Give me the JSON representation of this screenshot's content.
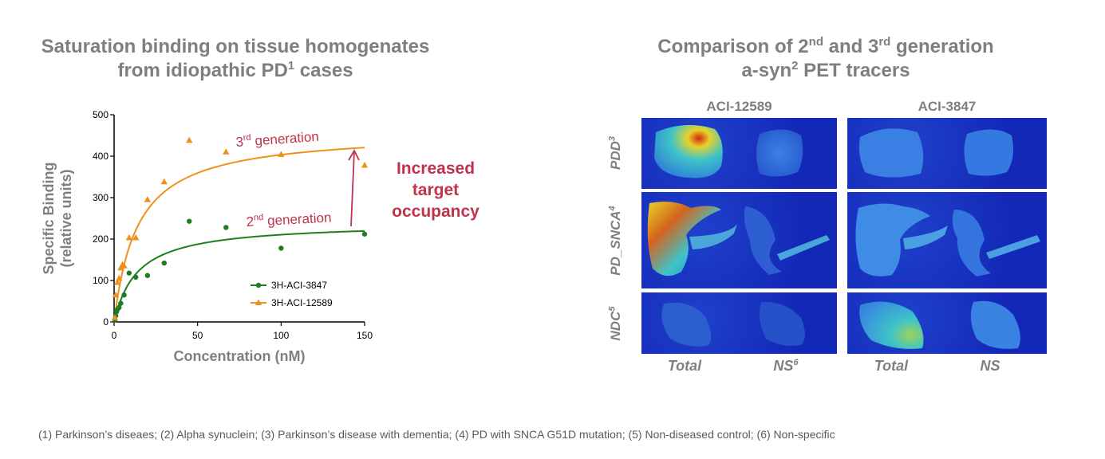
{
  "left_title": {
    "line1": "Saturation binding on tissue homogenates",
    "line2_before": "from idiopathic PD",
    "line2_sup": "1",
    "line2_after": " cases"
  },
  "right_title": {
    "line1_a": "Comparison of 2",
    "line1_sup1": "nd",
    "line1_b": " and 3",
    "line1_sup2": "rd",
    "line1_c": " generation",
    "line2_a": "a-syn",
    "line2_sup": "2",
    "line2_b": " PET tracers"
  },
  "chart_data": {
    "type": "scatter",
    "xlabel": "Concentration (nM)",
    "ylabel_line1": "Specific Binding",
    "ylabel_line2": "(relative units)",
    "xlim": [
      0,
      150
    ],
    "ylim": [
      0,
      500
    ],
    "xticks": [
      0,
      50,
      100,
      150
    ],
    "yticks": [
      0,
      100,
      200,
      300,
      400,
      500
    ],
    "grid": false,
    "legend_position": "lower-right",
    "series": [
      {
        "name": "3H-ACI-3847",
        "color": "#1e7d1e",
        "marker": "circle",
        "x": [
          0.5,
          1,
          1.5,
          2,
          3,
          4,
          6,
          9,
          13,
          20,
          30,
          45,
          67,
          100,
          150
        ],
        "y": [
          5,
          15,
          25,
          30,
          35,
          45,
          65,
          118,
          108,
          112,
          142,
          243,
          228,
          178,
          212
        ],
        "fit": {
          "bmax": 240,
          "kd": 14
        }
      },
      {
        "name": "3H-ACI-12589",
        "color": "#f0901c",
        "marker": "triangle",
        "x": [
          0.5,
          1,
          2,
          3,
          4,
          5,
          6,
          9,
          13,
          20,
          30,
          45,
          67,
          100,
          150
        ],
        "y": [
          10,
          65,
          95,
          105,
          130,
          138,
          135,
          203,
          203,
          295,
          338,
          438,
          410,
          404,
          378
        ],
        "fit": {
          "bmax": 460,
          "kd": 14
        }
      }
    ],
    "annotations": {
      "gen3_base": "3",
      "gen3_sup": "rd",
      "gen3_rest": " generation",
      "gen2_base": "2",
      "gen2_sup": "nd",
      "gen2_rest": " generation",
      "arrow_label_line1": "Increased",
      "arrow_label_line2": "target",
      "arrow_label_line3": "occupancy"
    }
  },
  "image_grid": {
    "columns": [
      "ACI-12589",
      "ACI-3847"
    ],
    "rows": [
      {
        "base": "PDD",
        "sup": "3"
      },
      {
        "base": "PD_SNCA",
        "sup": "4"
      },
      {
        "base": "NDC",
        "sup": "5"
      }
    ],
    "footer": [
      {
        "base": "Total",
        "sup": ""
      },
      {
        "base": "NS",
        "sup": "6"
      },
      {
        "base": "Total",
        "sup": ""
      },
      {
        "base": "NS",
        "sup": ""
      }
    ],
    "colors": {
      "background": "#1428b8",
      "high": "#d42a10",
      "mid": "#e8d22a",
      "low": "#3fc4c8"
    }
  },
  "footnote": "(1) Parkinson’s diseaes; (2) Alpha synuclein; (3) Parkinson’s disease with dementia; (4) PD with SNCA G51D mutation; (5) Non-diseased control; (6) Non-specific"
}
